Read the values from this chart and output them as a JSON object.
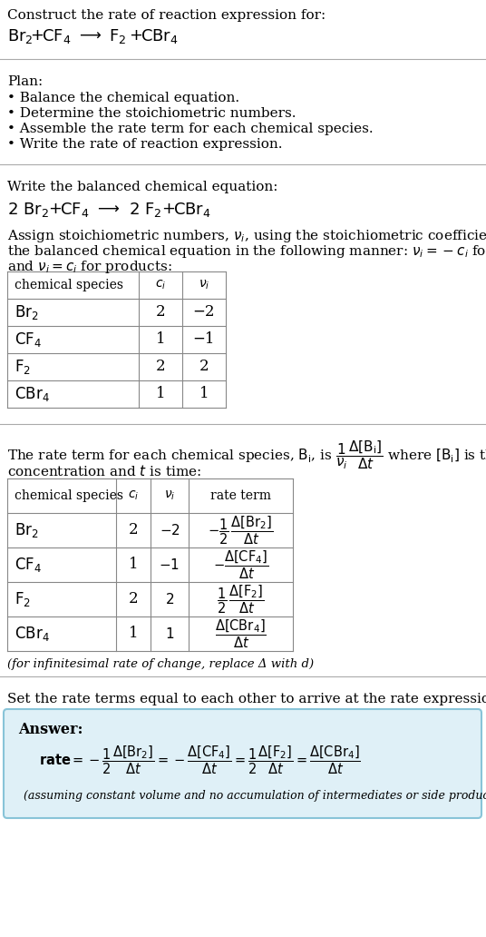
{
  "bg_color": "#ffffff",
  "answer_bg_color": "#dff0f7",
  "answer_border_color": "#88c4d8",
  "text_color": "#000000",
  "separator_color": "#aaaaaa",
  "title_text": "Construct the rate of reaction expression for:",
  "plan_header": "Plan:",
  "plan_bullets": [
    "• Balance the chemical equation.",
    "• Determine the stoichiometric numbers.",
    "• Assemble the rate term for each chemical species.",
    "• Write the rate of reaction expression."
  ],
  "balanced_header": "Write the balanced chemical equation:",
  "stoich_intro_lines": [
    "Assign stoichiometric numbers, $\\nu_i$, using the stoichiometric coefficients, $c_i$, from",
    "the balanced chemical equation in the following manner: $\\nu_i = -c_i$ for reactants",
    "and $\\nu_i = c_i$ for products:"
  ],
  "table1_rows": [
    [
      "Br_2",
      "2",
      "−2"
    ],
    [
      "CF_4",
      "1",
      "−1"
    ],
    [
      "F_2",
      "2",
      "2"
    ],
    [
      "CBr_4",
      "1",
      "1"
    ]
  ],
  "table2_rows": [
    [
      "Br_2",
      "2",
      "−2"
    ],
    [
      "CF_4",
      "1",
      "−1"
    ],
    [
      "F_2",
      "2",
      "2"
    ],
    [
      "CBr_4",
      "1",
      "1"
    ]
  ],
  "infinitesimal_note": "(for infinitesimal rate of change, replace Δ with d)",
  "set_equal_text": "Set the rate terms equal to each other to arrive at the rate expression:",
  "answer_label": "Answer:",
  "answer_note": "(assuming constant volume and no accumulation of intermediates or side products)"
}
